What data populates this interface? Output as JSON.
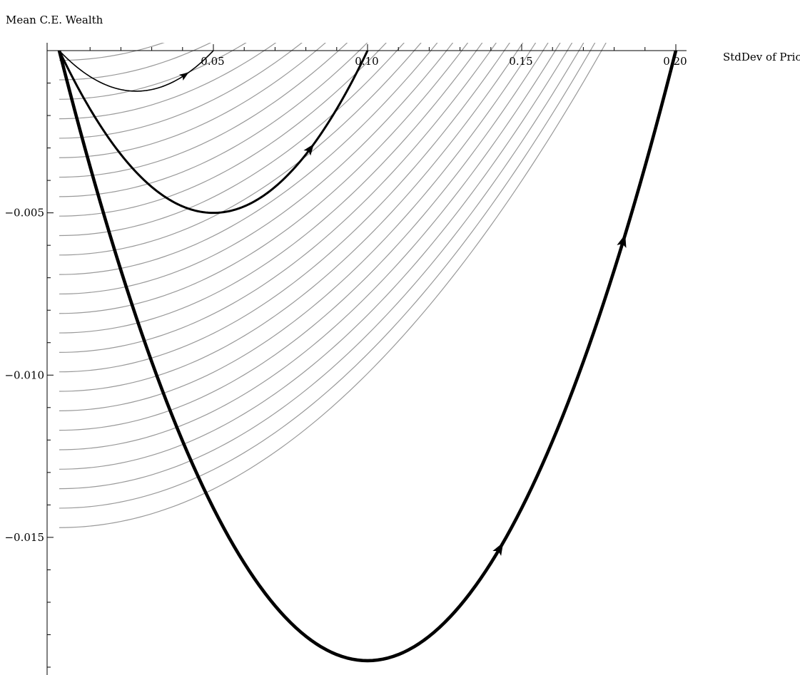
{
  "chart_data": {
    "type": "line",
    "title": "",
    "xlabel": "StdDev of Price",
    "ylabel": "Mean C.E. Wealth",
    "xlim": [
      0,
      0.205
    ],
    "ylim": [
      -0.019,
      0.0
    ],
    "x_ticks": [
      0.05,
      0.1,
      0.15,
      0.2
    ],
    "x_tick_labels": [
      "0.05",
      "0.10",
      "0.15",
      "0.20"
    ],
    "y_ticks": [
      -0.005,
      -0.01,
      -0.015
    ],
    "y_tick_labels": [
      "−0.005",
      "−0.010",
      "−0.015"
    ],
    "grid": false,
    "legend": "none",
    "series": [
      {
        "x": [
          0,
          0.005,
          0.01,
          0.015,
          0.02,
          0.025,
          0.03,
          0.035,
          0.04,
          0.045,
          0.05
        ],
        "y": [
          0,
          -0.00045,
          -0.0008,
          -0.00105,
          -0.0012,
          -0.00125,
          -0.0012,
          -0.00105,
          -0.0008,
          -0.00045,
          0
        ],
        "arrow_at_index": 8,
        "color": "#000000",
        "weight": "thin"
      },
      {
        "x": [
          0,
          0.01,
          0.02,
          0.03,
          0.04,
          0.05,
          0.06,
          0.07,
          0.08,
          0.09,
          0.1
        ],
        "y": [
          0,
          -0.0018,
          -0.0032,
          -0.0042,
          -0.0048,
          -0.005,
          -0.0048,
          -0.0042,
          -0.0032,
          -0.0018,
          0
        ],
        "arrow_at_index": 8,
        "color": "#000000",
        "weight": "medium"
      },
      {
        "x": [
          0,
          0.02,
          0.04,
          0.06,
          0.08,
          0.1,
          0.12,
          0.14,
          0.16,
          0.18,
          0.2
        ],
        "y": [
          0,
          -0.0068,
          -0.0121,
          -0.0158,
          -0.0181,
          -0.0188,
          -0.0181,
          -0.0158,
          -0.0121,
          -0.0068,
          0
        ],
        "arrow_at_index": [
          7,
          9
        ],
        "color": "#000000",
        "weight": "thick"
      }
    ],
    "contours": {
      "color": "#999999",
      "count": 20,
      "shape": "iso-certainty-equivalent curves (mean - k * variance = const)"
    }
  }
}
